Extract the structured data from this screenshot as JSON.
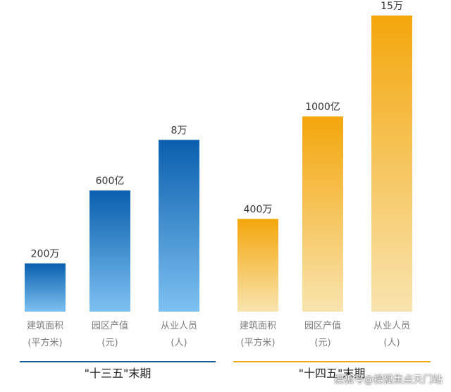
{
  "chart_data": {
    "type": "bar",
    "groups": [
      {
        "name": "\"十三五\"末期",
        "color_top": "#0a5fae",
        "color_bottom": "#7dc1f1",
        "line_color": "#1a5a96",
        "bars": [
          {
            "value_label": "200万",
            "category": [
              "建筑面积",
              "(平方米)"
            ],
            "height_ratio": 0.163
          },
          {
            "value_label": "600亿",
            "category": [
              "园区产值",
              "(元)"
            ],
            "height_ratio": 0.409
          },
          {
            "value_label": "8万",
            "category": [
              "从业人员",
              "(人)"
            ],
            "height_ratio": 0.58
          }
        ]
      },
      {
        "name": "\"十四五\"末期",
        "color_top": "#f4a60c",
        "color_bottom": "#f8e4ae",
        "line_color": "#f0a91a",
        "bars": [
          {
            "value_label": "400万",
            "category": [
              "建筑面积",
              "(平方米)"
            ],
            "height_ratio": 0.313
          },
          {
            "value_label": "1000亿",
            "category": [
              "园区产值",
              "(元)"
            ],
            "height_ratio": 0.659
          },
          {
            "value_label": "15万",
            "category": [
              "从业人员",
              "(人)"
            ],
            "height_ratio": 1.0
          }
        ]
      }
    ]
  },
  "watermark": "搜狐号@搜狐焦点天门站"
}
